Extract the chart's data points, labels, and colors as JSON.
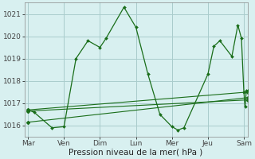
{
  "background_color": "#d8f0f0",
  "grid_color": "#aacccc",
  "line_color": "#1a6e1a",
  "marker_color": "#1a6e1a",
  "xlabel": "Pression niveau de la mer( hPa )",
  "ylim": [
    1015.5,
    1021.5
  ],
  "yticks": [
    1016,
    1017,
    1018,
    1019,
    1020,
    1021
  ],
  "day_labels": [
    "Mar",
    "Ven",
    "Dim",
    "Lun",
    "Mer",
    "Jeu",
    "Sam"
  ],
  "day_positions": [
    0,
    3,
    6,
    9,
    12,
    15,
    18
  ],
  "xlim": [
    -0.3,
    18.3
  ],
  "series1": [
    [
      0,
      1016.7
    ],
    [
      0.5,
      1016.6
    ],
    [
      2,
      1015.9
    ],
    [
      3,
      1015.95
    ],
    [
      4,
      1019.0
    ],
    [
      5,
      1019.8
    ],
    [
      6,
      1019.5
    ],
    [
      6.5,
      1019.9
    ],
    [
      8,
      1021.3
    ],
    [
      9,
      1020.4
    ],
    [
      10,
      1018.3
    ],
    [
      11,
      1016.5
    ],
    [
      12,
      1015.95
    ],
    [
      12.5,
      1015.8
    ],
    [
      13,
      1015.9
    ],
    [
      15,
      1018.3
    ],
    [
      15.5,
      1019.55
    ],
    [
      16,
      1019.8
    ],
    [
      17,
      1019.1
    ],
    [
      17.5,
      1020.5
    ],
    [
      17.8,
      1019.9
    ],
    [
      18,
      1017.5
    ],
    [
      18.1,
      1016.85
    ],
    [
      18.2,
      1017.55
    ],
    [
      18.3,
      1017.55
    ]
  ],
  "series2_line": [
    [
      0,
      1016.7
    ],
    [
      18.3,
      1017.5
    ]
  ],
  "series3_line": [
    [
      0,
      1016.65
    ],
    [
      18.3,
      1017.15
    ]
  ],
  "series4_line": [
    [
      0,
      1016.15
    ],
    [
      18.3,
      1017.25
    ]
  ]
}
